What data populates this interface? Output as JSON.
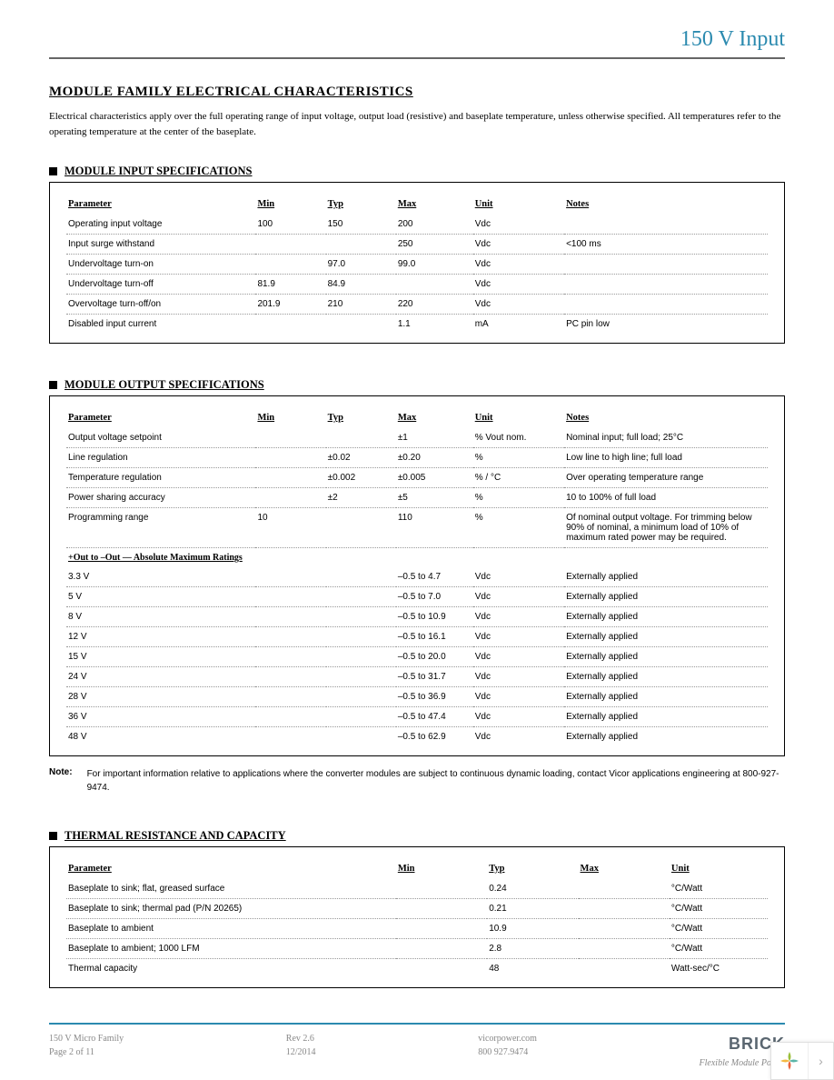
{
  "header": {
    "title": "150 V Input"
  },
  "page_title": "MODULE FAMILY ELECTRICAL CHARACTERISTICS",
  "intro": "Electrical characteristics apply over the full operating range of input voltage, output load (resistive) and baseplate temperature, unless otherwise specified. All temperatures refer to the operating temperature at the center of the baseplate.",
  "sections": {
    "input": {
      "title": "MODULE INPUT SPECIFICATIONS",
      "headers": {
        "p": "Parameter",
        "min": "Min",
        "typ": "Typ",
        "max": "Max",
        "unit": "Unit",
        "notes": "Notes"
      },
      "rows": [
        {
          "p": "Operating input voltage",
          "min": "100",
          "typ": "150",
          "max": "200",
          "unit": "Vdc",
          "notes": ""
        },
        {
          "p": "Input surge withstand",
          "min": "",
          "typ": "",
          "max": "250",
          "unit": "Vdc",
          "notes": "<100 ms"
        },
        {
          "p": "Undervoltage turn-on",
          "min": "",
          "typ": "97.0",
          "max": "99.0",
          "unit": "Vdc",
          "notes": ""
        },
        {
          "p": "Undervoltage turn-off",
          "min": "81.9",
          "typ": "84.9",
          "max": "",
          "unit": "Vdc",
          "notes": ""
        },
        {
          "p": "Overvoltage turn-off/on",
          "min": "201.9",
          "typ": "210",
          "max": "220",
          "unit": "Vdc",
          "notes": ""
        },
        {
          "p": "Disabled input current",
          "min": "",
          "typ": "",
          "max": "1.1",
          "unit": "mA",
          "notes": "PC pin low"
        }
      ]
    },
    "output": {
      "title": "MODULE OUTPUT SPECIFICATIONS",
      "headers": {
        "p": "Parameter",
        "min": "Min",
        "typ": "Typ",
        "max": "Max",
        "unit": "Unit",
        "notes": "Notes"
      },
      "rows": [
        {
          "p": "Output voltage setpoint",
          "min": "",
          "typ": "",
          "max": "±1",
          "unit": "% Vout nom.",
          "notes": "Nominal input; full load; 25°C"
        },
        {
          "p": "Line regulation",
          "min": "",
          "typ": "±0.02",
          "max": "±0.20",
          "unit": "%",
          "notes": "Low line to high line; full load"
        },
        {
          "p": "Temperature regulation",
          "min": "",
          "typ": "±0.002",
          "max": "±0.005",
          "unit": "% / °C",
          "notes": "Over operating temperature range"
        },
        {
          "p": "Power sharing accuracy",
          "min": "",
          "typ": "±2",
          "max": "±5",
          "unit": "%",
          "notes": "10 to 100% of full load"
        },
        {
          "p": "Programming range",
          "min": "10",
          "typ": "",
          "max": "110",
          "unit": "%",
          "notes": "Of nominal output voltage. For trimming below 90% of nominal, a minimum load of 10% of maximum rated power may be required."
        }
      ],
      "subhead": "+Out to –Out — Absolute Maximum Ratings",
      "abs_rows": [
        {
          "p": "3.3 V",
          "max": "–0.5 to 4.7",
          "unit": "Vdc",
          "notes": "Externally applied"
        },
        {
          "p": "5 V",
          "max": "–0.5 to 7.0",
          "unit": "Vdc",
          "notes": "Externally applied"
        },
        {
          "p": "8 V",
          "max": "–0.5 to 10.9",
          "unit": "Vdc",
          "notes": "Externally applied"
        },
        {
          "p": "12 V",
          "max": "–0.5 to 16.1",
          "unit": "Vdc",
          "notes": "Externally applied"
        },
        {
          "p": "15 V",
          "max": "–0.5 to 20.0",
          "unit": "Vdc",
          "notes": "Externally applied"
        },
        {
          "p": "24 V",
          "max": "–0.5 to 31.7",
          "unit": "Vdc",
          "notes": "Externally applied"
        },
        {
          "p": "28 V",
          "max": "–0.5 to 36.9",
          "unit": "Vdc",
          "notes": "Externally applied"
        },
        {
          "p": "36 V",
          "max": "–0.5 to 47.4",
          "unit": "Vdc",
          "notes": "Externally applied"
        },
        {
          "p": "48 V",
          "max": "–0.5 to 62.9",
          "unit": "Vdc",
          "notes": "Externally applied"
        }
      ]
    },
    "thermal": {
      "title": "THERMAL RESISTANCE AND CAPACITY",
      "headers": {
        "p": "Parameter",
        "min": "Min",
        "typ": "Typ",
        "max": "Max",
        "unit": "Unit"
      },
      "rows": [
        {
          "p": "Baseplate to sink; flat, greased surface",
          "min": "",
          "typ": "0.24",
          "max": "",
          "unit": "°C/Watt"
        },
        {
          "p": "Baseplate to sink; thermal pad (P/N 20265)",
          "min": "",
          "typ": "0.21",
          "max": "",
          "unit": "°C/Watt"
        },
        {
          "p": "Baseplate to ambient",
          "min": "",
          "typ": "10.9",
          "max": "",
          "unit": "°C/Watt"
        },
        {
          "p": "Baseplate to ambient; 1000 LFM",
          "min": "",
          "typ": "2.8",
          "max": "",
          "unit": "°C/Watt"
        },
        {
          "p": "Thermal capacity",
          "min": "",
          "typ": "48",
          "max": "",
          "unit": "Watt-sec/°C"
        }
      ]
    }
  },
  "note": {
    "label": "Note:",
    "text": "For important information relative to applications where the converter modules are subject to continuous dynamic loading, contact Vicor applications engineering at 800-927-9474."
  },
  "footer": {
    "col1_line1": "150 V Micro Family",
    "col1_line2": "Page 2 of 11",
    "col2_line1": "Rev 2.6",
    "col2_line2": "12/2014",
    "col3_line1": "vicorpower.com",
    "col3_line2": "800 927.9474",
    "brand": "BRICK",
    "brand_tag": "Flexible Module Power"
  }
}
